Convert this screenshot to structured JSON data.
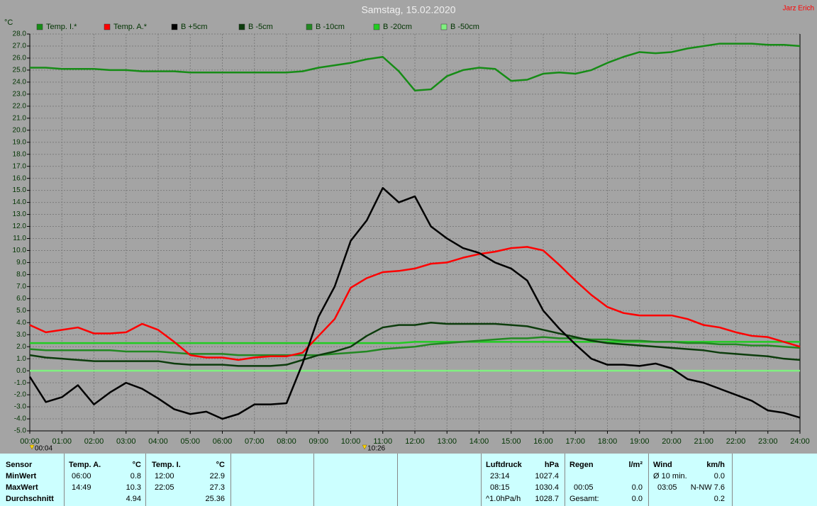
{
  "title": "Samstag, 15.02.2020",
  "author": "Jarz Erich",
  "chart_data": {
    "type": "line",
    "y_label": "°C",
    "xlim": [
      0,
      24
    ],
    "ylim": [
      -5,
      28
    ],
    "grid": true,
    "xticks": [
      {
        "value": 0,
        "label": "00:00"
      },
      {
        "value": 1,
        "label": "01:00"
      },
      {
        "value": 2,
        "label": "02:00"
      },
      {
        "value": 3,
        "label": "03:00"
      },
      {
        "value": 4,
        "label": "04:00"
      },
      {
        "value": 5,
        "label": "05:00"
      },
      {
        "value": 6,
        "label": "06:00"
      },
      {
        "value": 7,
        "label": "07:00"
      },
      {
        "value": 8,
        "label": "08:00"
      },
      {
        "value": 9,
        "label": "09:00"
      },
      {
        "value": 10,
        "label": "10:00"
      },
      {
        "value": 11,
        "label": "11:00"
      },
      {
        "value": 12,
        "label": "12:00"
      },
      {
        "value": 13,
        "label": "13:00"
      },
      {
        "value": 14,
        "label": "14:00"
      },
      {
        "value": 15,
        "label": "15:00"
      },
      {
        "value": 16,
        "label": "16:00"
      },
      {
        "value": 17,
        "label": "17:00"
      },
      {
        "value": 18,
        "label": "18:00"
      },
      {
        "value": 19,
        "label": "19:00"
      },
      {
        "value": 20,
        "label": "20:00"
      },
      {
        "value": 21,
        "label": "21:00"
      },
      {
        "value": 22,
        "label": "22:00"
      },
      {
        "value": 23,
        "label": "23:00"
      },
      {
        "value": 24,
        "label": "24:00"
      }
    ],
    "yticks": [
      {
        "value": -5,
        "label": "-5.0"
      },
      {
        "value": -4,
        "label": "-4.0"
      },
      {
        "value": -3,
        "label": "-3.0"
      },
      {
        "value": -2,
        "label": "-2.0"
      },
      {
        "value": -1,
        "label": "-1.0"
      },
      {
        "value": 0,
        "label": "0.0"
      },
      {
        "value": 1,
        "label": "1.0"
      },
      {
        "value": 2,
        "label": "2.0"
      },
      {
        "value": 3,
        "label": "3.0"
      },
      {
        "value": 4,
        "label": "4.0"
      },
      {
        "value": 5,
        "label": "5.0"
      },
      {
        "value": 6,
        "label": "6.0"
      },
      {
        "value": 7,
        "label": "7.0"
      },
      {
        "value": 8,
        "label": "8.0"
      },
      {
        "value": 9,
        "label": "9.0"
      },
      {
        "value": 10,
        "label": "10.0"
      },
      {
        "value": 11,
        "label": "11.0"
      },
      {
        "value": 12,
        "label": "12.0"
      },
      {
        "value": 13,
        "label": "13.0"
      },
      {
        "value": 14,
        "label": "14.0"
      },
      {
        "value": 15,
        "label": "15.0"
      },
      {
        "value": 16,
        "label": "16.0"
      },
      {
        "value": 17,
        "label": "17.0"
      },
      {
        "value": 18,
        "label": "18.0"
      },
      {
        "value": 19,
        "label": "19.0"
      },
      {
        "value": 20,
        "label": "20.0"
      },
      {
        "value": 21,
        "label": "21.0"
      },
      {
        "value": 22,
        "label": "22.0"
      },
      {
        "value": 23,
        "label": "23.0"
      },
      {
        "value": 24,
        "label": "24.0"
      },
      {
        "value": 25,
        "label": "25.0"
      },
      {
        "value": 26,
        "label": "26.0"
      },
      {
        "value": 27,
        "label": "27.0"
      },
      {
        "value": 28,
        "label": "28.0"
      }
    ],
    "x": [
      0,
      0.5,
      1,
      1.5,
      2,
      2.5,
      3,
      3.5,
      4,
      4.5,
      5,
      5.5,
      6,
      6.5,
      7,
      7.5,
      8,
      8.5,
      9,
      9.5,
      10,
      10.5,
      11,
      11.5,
      12,
      12.5,
      13,
      13.5,
      14,
      14.5,
      15,
      15.5,
      16,
      16.5,
      17,
      17.5,
      18,
      18.5,
      19,
      19.5,
      20,
      20.5,
      21,
      21.5,
      22,
      22.5,
      23,
      23.5,
      24
    ],
    "series": [
      {
        "name": "Temp. I.*",
        "color": "#168c16",
        "values": [
          25.2,
          25.2,
          25.1,
          25.1,
          25.1,
          25.0,
          25.0,
          24.9,
          24.9,
          24.9,
          24.8,
          24.8,
          24.8,
          24.8,
          24.8,
          24.8,
          24.8,
          24.9,
          25.2,
          25.4,
          25.6,
          25.9,
          26.1,
          24.9,
          23.3,
          23.4,
          24.5,
          25.0,
          25.2,
          25.1,
          24.1,
          24.2,
          24.7,
          24.8,
          24.7,
          25.0,
          25.6,
          26.1,
          26.5,
          26.4,
          26.5,
          26.8,
          27.0,
          27.2,
          27.2,
          27.2,
          27.1,
          27.1,
          27.0
        ]
      },
      {
        "name": "Temp. A.*",
        "color": "#ff0000",
        "values": [
          3.8,
          3.2,
          3.4,
          3.6,
          3.1,
          3.1,
          3.2,
          3.9,
          3.4,
          2.4,
          1.3,
          1.1,
          1.1,
          0.9,
          1.1,
          1.2,
          1.2,
          1.5,
          2.9,
          4.3,
          6.9,
          7.7,
          8.2,
          8.3,
          8.5,
          8.9,
          9.0,
          9.4,
          9.7,
          9.9,
          10.2,
          10.3,
          10.0,
          8.8,
          7.5,
          6.3,
          5.3,
          4.8,
          4.6,
          4.6,
          4.6,
          4.3,
          3.8,
          3.6,
          3.2,
          2.9,
          2.8,
          2.4,
          2.0
        ]
      },
      {
        "name": "B +5cm",
        "color": "#000000",
        "values": [
          -0.5,
          -2.6,
          -2.2,
          -1.2,
          -2.8,
          -1.8,
          -1.0,
          -1.5,
          -2.3,
          -3.2,
          -3.6,
          -3.4,
          -4.0,
          -3.6,
          -2.8,
          -2.8,
          -2.7,
          0.6,
          4.5,
          7.0,
          10.8,
          12.5,
          15.2,
          14.0,
          14.5,
          12.0,
          11.0,
          10.2,
          9.8,
          9.0,
          8.5,
          7.5,
          5.0,
          3.5,
          2.2,
          1.0,
          0.5,
          0.5,
          0.4,
          0.6,
          0.2,
          -0.7,
          -1.0,
          -1.5,
          -2.0,
          -2.5,
          -3.3,
          -3.5,
          -3.9
        ]
      },
      {
        "name": "B -5cm",
        "color": "#0c3c0c",
        "values": [
          1.3,
          1.1,
          1.0,
          0.9,
          0.8,
          0.8,
          0.8,
          0.8,
          0.8,
          0.6,
          0.5,
          0.5,
          0.5,
          0.4,
          0.4,
          0.4,
          0.5,
          0.9,
          1.3,
          1.6,
          2.0,
          2.9,
          3.6,
          3.8,
          3.8,
          4.0,
          3.9,
          3.9,
          3.9,
          3.9,
          3.8,
          3.7,
          3.4,
          3.1,
          2.8,
          2.5,
          2.3,
          2.2,
          2.1,
          2.0,
          1.9,
          1.8,
          1.7,
          1.5,
          1.4,
          1.3,
          1.2,
          1.0,
          0.9
        ]
      },
      {
        "name": "B -10cm",
        "color": "#228822",
        "values": [
          1.8,
          1.7,
          1.7,
          1.7,
          1.7,
          1.7,
          1.6,
          1.6,
          1.6,
          1.5,
          1.4,
          1.4,
          1.4,
          1.3,
          1.3,
          1.3,
          1.3,
          1.3,
          1.3,
          1.4,
          1.5,
          1.6,
          1.8,
          1.9,
          2.0,
          2.2,
          2.3,
          2.4,
          2.5,
          2.6,
          2.7,
          2.7,
          2.8,
          2.7,
          2.7,
          2.6,
          2.6,
          2.5,
          2.5,
          2.4,
          2.4,
          2.3,
          2.3,
          2.2,
          2.2,
          2.1,
          2.1,
          2.0,
          1.9
        ]
      },
      {
        "name": "B -20cm",
        "color": "#22cc22",
        "values": [
          2.3,
          2.3,
          2.3,
          2.3,
          2.3,
          2.3,
          2.3,
          2.3,
          2.3,
          2.3,
          2.3,
          2.3,
          2.3,
          2.3,
          2.3,
          2.3,
          2.3,
          2.3,
          2.3,
          2.3,
          2.3,
          2.3,
          2.3,
          2.3,
          2.4,
          2.4,
          2.4,
          2.4,
          2.4,
          2.4,
          2.4,
          2.4,
          2.4,
          2.4,
          2.4,
          2.4,
          2.4,
          2.4,
          2.4,
          2.4,
          2.4,
          2.4,
          2.4,
          2.4,
          2.4,
          2.4,
          2.4,
          2.4,
          2.4
        ]
      },
      {
        "name": "B -50cm",
        "color": "#80f080",
        "values": [
          0.0,
          0.0,
          0.0,
          0.0,
          0.0,
          0.0,
          0.0,
          0.0,
          0.0,
          0.0,
          0.0,
          0.0,
          0.0,
          0.0,
          0.0,
          0.0,
          0.0,
          0.0,
          0.0,
          0.0,
          0.0,
          0.0,
          0.0,
          0.0,
          0.0,
          0.0,
          0.0,
          0.0,
          0.0,
          0.0,
          0.0,
          0.0,
          0.0,
          0.0,
          0.0,
          0.0,
          0.0,
          0.0,
          0.0,
          0.0,
          0.0,
          0.0,
          0.0,
          0.0,
          0.0,
          0.0,
          0.0,
          0.0,
          0.0
        ]
      }
    ],
    "markers": [
      {
        "x": 0.067,
        "label": "00:04"
      },
      {
        "x": 10.433,
        "label": "10:26"
      }
    ]
  },
  "stats": {
    "labels": [
      "Sensor",
      "MinWert",
      "MaxWert",
      "Durchschnitt"
    ],
    "temp_a": {
      "head": [
        "Temp. A.",
        "°C"
      ],
      "min": [
        "06:00",
        "0.8"
      ],
      "max": [
        "14:49",
        "10.3"
      ],
      "avg": "4.94"
    },
    "temp_i": {
      "head": [
        "Temp. I.",
        "°C"
      ],
      "min": [
        "12:00",
        "22.9"
      ],
      "max": [
        "22:05",
        "27.3"
      ],
      "avg": "25.36"
    },
    "luftdruck": {
      "head": [
        "Luftdruck",
        "hPa"
      ],
      "min": [
        "23:14",
        "1027.4"
      ],
      "max": [
        "08:15",
        "1030.4"
      ],
      "avg": [
        "^1.0hPa/h",
        "1028.7"
      ]
    },
    "regen": {
      "head": [
        "Regen",
        "l/m²"
      ],
      "max": [
        "00:05",
        "0.0"
      ],
      "total": [
        "Gesamt:",
        "0.0"
      ]
    },
    "wind": {
      "head": [
        "Wind",
        "km/h"
      ],
      "avg10": [
        "Ø 10 min.",
        "0.0"
      ],
      "max": [
        "03:05",
        "N-NW 7.6"
      ],
      "avg": "0.2"
    }
  }
}
